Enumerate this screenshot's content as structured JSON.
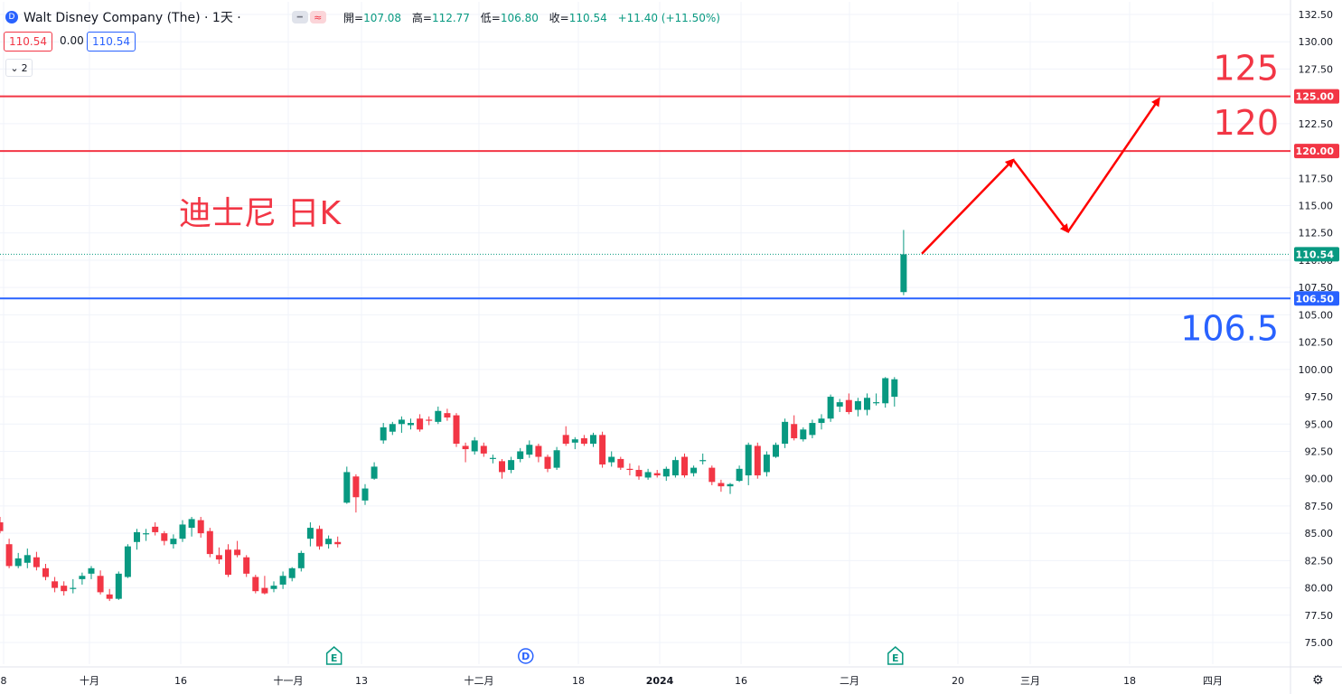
{
  "header": {
    "symbol_title": "Walt Disney Company (The) · 1天 ·",
    "ohlc": [
      {
        "k": "開=",
        "v": "107.08"
      },
      {
        "k": "高=",
        "v": "112.77"
      },
      {
        "k": "低=",
        "v": "106.80"
      },
      {
        "k": "收=",
        "v": "110.54"
      },
      {
        "k": "",
        "v": "+11.40 (+11.50%)"
      }
    ],
    "sell_price": "110.54",
    "spread": "0.00",
    "buy_price": "110.54",
    "indicator_count": "2"
  },
  "colors": {
    "up": "#089981",
    "down": "#f23645",
    "resistance": "#f23645",
    "support": "#2962ff"
  },
  "chart_data": {
    "type": "candlestick",
    "title": "迪士尼 日K",
    "ylim": [
      73.75,
      133.0
    ],
    "y_ticks": [
      "75.00",
      "77.50",
      "80.00",
      "82.50",
      "85.00",
      "87.50",
      "90.00",
      "92.50",
      "95.00",
      "97.50",
      "100.00",
      "102.50",
      "105.00",
      "107.50",
      "110.00",
      "112.50",
      "115.00",
      "117.50",
      "120.00",
      "122.50",
      "125.00",
      "127.50",
      "130.00",
      "132.50"
    ],
    "x_ticks": [
      "8",
      "十月",
      "16",
      "十一月",
      "13",
      "十二月",
      "18",
      "2024",
      "16",
      "二月",
      "20",
      "三月",
      "18",
      "四月"
    ],
    "candles": [
      {
        "o": 86.0,
        "h": 86.5,
        "l": 85.0,
        "c": 85.2
      },
      {
        "o": 84.0,
        "h": 84.5,
        "l": 81.8,
        "c": 82.0
      },
      {
        "o": 82.0,
        "h": 83.2,
        "l": 81.8,
        "c": 82.7
      },
      {
        "o": 82.3,
        "h": 83.6,
        "l": 81.8,
        "c": 83.0
      },
      {
        "o": 82.8,
        "h": 83.3,
        "l": 81.6,
        "c": 81.9
      },
      {
        "o": 81.8,
        "h": 82.2,
        "l": 80.7,
        "c": 81.0
      },
      {
        "o": 80.6,
        "h": 81.0,
        "l": 79.6,
        "c": 80.0
      },
      {
        "o": 80.2,
        "h": 80.6,
        "l": 79.3,
        "c": 79.7
      },
      {
        "o": 79.9,
        "h": 80.8,
        "l": 79.5,
        "c": 80.0
      },
      {
        "o": 80.8,
        "h": 81.4,
        "l": 80.3,
        "c": 81.1
      },
      {
        "o": 81.3,
        "h": 82.0,
        "l": 80.8,
        "c": 81.8
      },
      {
        "o": 81.1,
        "h": 81.6,
        "l": 79.4,
        "c": 79.6
      },
      {
        "o": 79.4,
        "h": 79.9,
        "l": 78.8,
        "c": 79.0
      },
      {
        "o": 79.0,
        "h": 81.5,
        "l": 78.9,
        "c": 81.3
      },
      {
        "o": 81.0,
        "h": 84.0,
        "l": 80.9,
        "c": 83.8
      },
      {
        "o": 84.2,
        "h": 85.4,
        "l": 83.5,
        "c": 85.1
      },
      {
        "o": 84.9,
        "h": 85.4,
        "l": 84.3,
        "c": 85.0
      },
      {
        "o": 85.6,
        "h": 86.0,
        "l": 84.8,
        "c": 85.1
      },
      {
        "o": 85.0,
        "h": 85.2,
        "l": 83.9,
        "c": 84.3
      },
      {
        "o": 84.0,
        "h": 84.9,
        "l": 83.6,
        "c": 84.5
      },
      {
        "o": 84.5,
        "h": 86.2,
        "l": 84.2,
        "c": 85.8
      },
      {
        "o": 85.5,
        "h": 86.5,
        "l": 84.7,
        "c": 86.3
      },
      {
        "o": 86.2,
        "h": 86.5,
        "l": 84.6,
        "c": 85.0
      },
      {
        "o": 85.2,
        "h": 85.5,
        "l": 82.8,
        "c": 83.1
      },
      {
        "o": 83.0,
        "h": 83.7,
        "l": 82.2,
        "c": 82.6
      },
      {
        "o": 83.5,
        "h": 84.0,
        "l": 81.0,
        "c": 81.2
      },
      {
        "o": 83.5,
        "h": 84.3,
        "l": 82.8,
        "c": 83.0
      },
      {
        "o": 82.8,
        "h": 83.0,
        "l": 81.0,
        "c": 81.3
      },
      {
        "o": 81.0,
        "h": 81.2,
        "l": 79.5,
        "c": 79.7
      },
      {
        "o": 80.0,
        "h": 81.1,
        "l": 79.4,
        "c": 79.5
      },
      {
        "o": 79.9,
        "h": 80.6,
        "l": 79.6,
        "c": 80.2
      },
      {
        "o": 80.3,
        "h": 81.5,
        "l": 79.9,
        "c": 81.1
      },
      {
        "o": 80.9,
        "h": 81.9,
        "l": 80.6,
        "c": 81.8
      },
      {
        "o": 81.8,
        "h": 83.4,
        "l": 81.5,
        "c": 83.2
      },
      {
        "o": 84.5,
        "h": 86.0,
        "l": 83.8,
        "c": 85.5
      },
      {
        "o": 85.4,
        "h": 85.7,
        "l": 83.5,
        "c": 83.8
      },
      {
        "o": 84.0,
        "h": 84.8,
        "l": 83.6,
        "c": 84.5
      },
      {
        "o": 84.2,
        "h": 84.7,
        "l": 83.7,
        "c": 84.0
      },
      {
        "o": 87.8,
        "h": 91.1,
        "l": 87.7,
        "c": 90.6
      },
      {
        "o": 90.2,
        "h": 90.4,
        "l": 86.9,
        "c": 88.3
      },
      {
        "o": 88.0,
        "h": 89.5,
        "l": 87.6,
        "c": 89.1
      },
      {
        "o": 90.0,
        "h": 91.5,
        "l": 89.9,
        "c": 91.1
      },
      {
        "o": 93.5,
        "h": 95.1,
        "l": 93.2,
        "c": 94.7
      },
      {
        "o": 94.3,
        "h": 95.2,
        "l": 94.0,
        "c": 95.0
      },
      {
        "o": 95.0,
        "h": 95.7,
        "l": 94.2,
        "c": 95.4
      },
      {
        "o": 94.9,
        "h": 95.5,
        "l": 94.5,
        "c": 95.1
      },
      {
        "o": 95.5,
        "h": 95.9,
        "l": 94.3,
        "c": 94.5
      },
      {
        "o": 95.4,
        "h": 95.7,
        "l": 94.9,
        "c": 95.3
      },
      {
        "o": 95.2,
        "h": 96.6,
        "l": 95.0,
        "c": 96.2
      },
      {
        "o": 96.0,
        "h": 96.4,
        "l": 95.3,
        "c": 95.6
      },
      {
        "o": 95.8,
        "h": 96.0,
        "l": 92.9,
        "c": 93.2
      },
      {
        "o": 93.0,
        "h": 93.3,
        "l": 91.5,
        "c": 92.7
      },
      {
        "o": 92.5,
        "h": 93.8,
        "l": 92.2,
        "c": 93.5
      },
      {
        "o": 93.0,
        "h": 93.3,
        "l": 92.0,
        "c": 92.3
      },
      {
        "o": 91.8,
        "h": 92.2,
        "l": 91.4,
        "c": 91.9
      },
      {
        "o": 91.6,
        "h": 91.8,
        "l": 90.0,
        "c": 90.6
      },
      {
        "o": 90.8,
        "h": 92.0,
        "l": 90.5,
        "c": 91.7
      },
      {
        "o": 91.8,
        "h": 92.8,
        "l": 91.5,
        "c": 92.5
      },
      {
        "o": 92.2,
        "h": 93.5,
        "l": 91.9,
        "c": 93.1
      },
      {
        "o": 93.0,
        "h": 93.2,
        "l": 91.5,
        "c": 92.0
      },
      {
        "o": 92.0,
        "h": 92.2,
        "l": 90.6,
        "c": 90.9
      },
      {
        "o": 91.0,
        "h": 92.9,
        "l": 90.8,
        "c": 92.6
      },
      {
        "o": 94.0,
        "h": 94.8,
        "l": 93.0,
        "c": 93.2
      },
      {
        "o": 93.3,
        "h": 93.8,
        "l": 92.7,
        "c": 93.6
      },
      {
        "o": 93.7,
        "h": 94.0,
        "l": 93.0,
        "c": 93.2
      },
      {
        "o": 93.2,
        "h": 94.2,
        "l": 92.9,
        "c": 94.0
      },
      {
        "o": 94.0,
        "h": 94.3,
        "l": 91.0,
        "c": 91.3
      },
      {
        "o": 91.5,
        "h": 92.5,
        "l": 91.1,
        "c": 92.0
      },
      {
        "o": 91.8,
        "h": 92.0,
        "l": 90.8,
        "c": 91.0
      },
      {
        "o": 90.9,
        "h": 91.4,
        "l": 90.3,
        "c": 90.8
      },
      {
        "o": 90.8,
        "h": 91.2,
        "l": 89.9,
        "c": 90.2
      },
      {
        "o": 90.1,
        "h": 90.9,
        "l": 89.9,
        "c": 90.6
      },
      {
        "o": 90.5,
        "h": 90.8,
        "l": 90.1,
        "c": 90.3
      },
      {
        "o": 90.2,
        "h": 91.1,
        "l": 89.8,
        "c": 90.9
      },
      {
        "o": 90.3,
        "h": 92.0,
        "l": 90.1,
        "c": 91.7
      },
      {
        "o": 92.0,
        "h": 92.3,
        "l": 90.1,
        "c": 90.3
      },
      {
        "o": 90.5,
        "h": 91.2,
        "l": 90.2,
        "c": 91.0
      },
      {
        "o": 91.6,
        "h": 92.3,
        "l": 91.3,
        "c": 91.7
      },
      {
        "o": 91.0,
        "h": 91.2,
        "l": 89.4,
        "c": 89.7
      },
      {
        "o": 89.6,
        "h": 89.9,
        "l": 88.8,
        "c": 89.3
      },
      {
        "o": 89.3,
        "h": 89.6,
        "l": 88.6,
        "c": 89.5
      },
      {
        "o": 89.8,
        "h": 91.2,
        "l": 89.7,
        "c": 90.9
      },
      {
        "o": 90.3,
        "h": 93.3,
        "l": 89.4,
        "c": 93.1
      },
      {
        "o": 93.0,
        "h": 93.3,
        "l": 90.0,
        "c": 90.3
      },
      {
        "o": 90.6,
        "h": 92.5,
        "l": 90.2,
        "c": 92.2
      },
      {
        "o": 92.0,
        "h": 93.3,
        "l": 91.9,
        "c": 93.1
      },
      {
        "o": 93.2,
        "h": 95.5,
        "l": 92.8,
        "c": 95.2
      },
      {
        "o": 95.0,
        "h": 95.8,
        "l": 93.5,
        "c": 93.7
      },
      {
        "o": 93.6,
        "h": 94.7,
        "l": 93.4,
        "c": 94.5
      },
      {
        "o": 94.0,
        "h": 95.4,
        "l": 93.7,
        "c": 95.1
      },
      {
        "o": 95.1,
        "h": 95.9,
        "l": 94.5,
        "c": 95.5
      },
      {
        "o": 95.5,
        "h": 97.7,
        "l": 95.2,
        "c": 97.5
      },
      {
        "o": 96.6,
        "h": 97.3,
        "l": 96.1,
        "c": 97.0
      },
      {
        "o": 97.2,
        "h": 97.8,
        "l": 95.9,
        "c": 96.1
      },
      {
        "o": 96.3,
        "h": 97.4,
        "l": 95.7,
        "c": 97.1
      },
      {
        "o": 96.3,
        "h": 97.8,
        "l": 95.8,
        "c": 97.4
      },
      {
        "o": 96.9,
        "h": 97.8,
        "l": 96.7,
        "c": 97.0
      },
      {
        "o": 96.9,
        "h": 99.3,
        "l": 96.5,
        "c": 99.2
      },
      {
        "o": 97.5,
        "h": 99.3,
        "l": 96.6,
        "c": 99.1
      },
      {
        "o": 107.08,
        "h": 112.77,
        "l": 106.8,
        "c": 110.54
      }
    ],
    "horizontal_lines": [
      {
        "value": 125.0,
        "label": "125",
        "axis_label": "125.00",
        "color": "#f23645"
      },
      {
        "value": 120.0,
        "label": "120",
        "axis_label": "120.00",
        "color": "#f23645"
      },
      {
        "value": 106.5,
        "label": "106.5",
        "axis_label": "106.50",
        "color": "#2962ff"
      }
    ],
    "last_price": {
      "value": 110.54,
      "label": "110.54"
    },
    "forecast_path": [
      {
        "bar": 101,
        "y": 110.6
      },
      {
        "bar": 111,
        "y": 119.2
      },
      {
        "bar": 117,
        "y": 112.6
      },
      {
        "bar": 127,
        "y": 124.8
      }
    ],
    "event_markers": [
      {
        "bar": 36.5,
        "label": "E"
      },
      {
        "bar": 57.5,
        "label": "D"
      },
      {
        "bar": 98,
        "label": "E"
      }
    ]
  }
}
